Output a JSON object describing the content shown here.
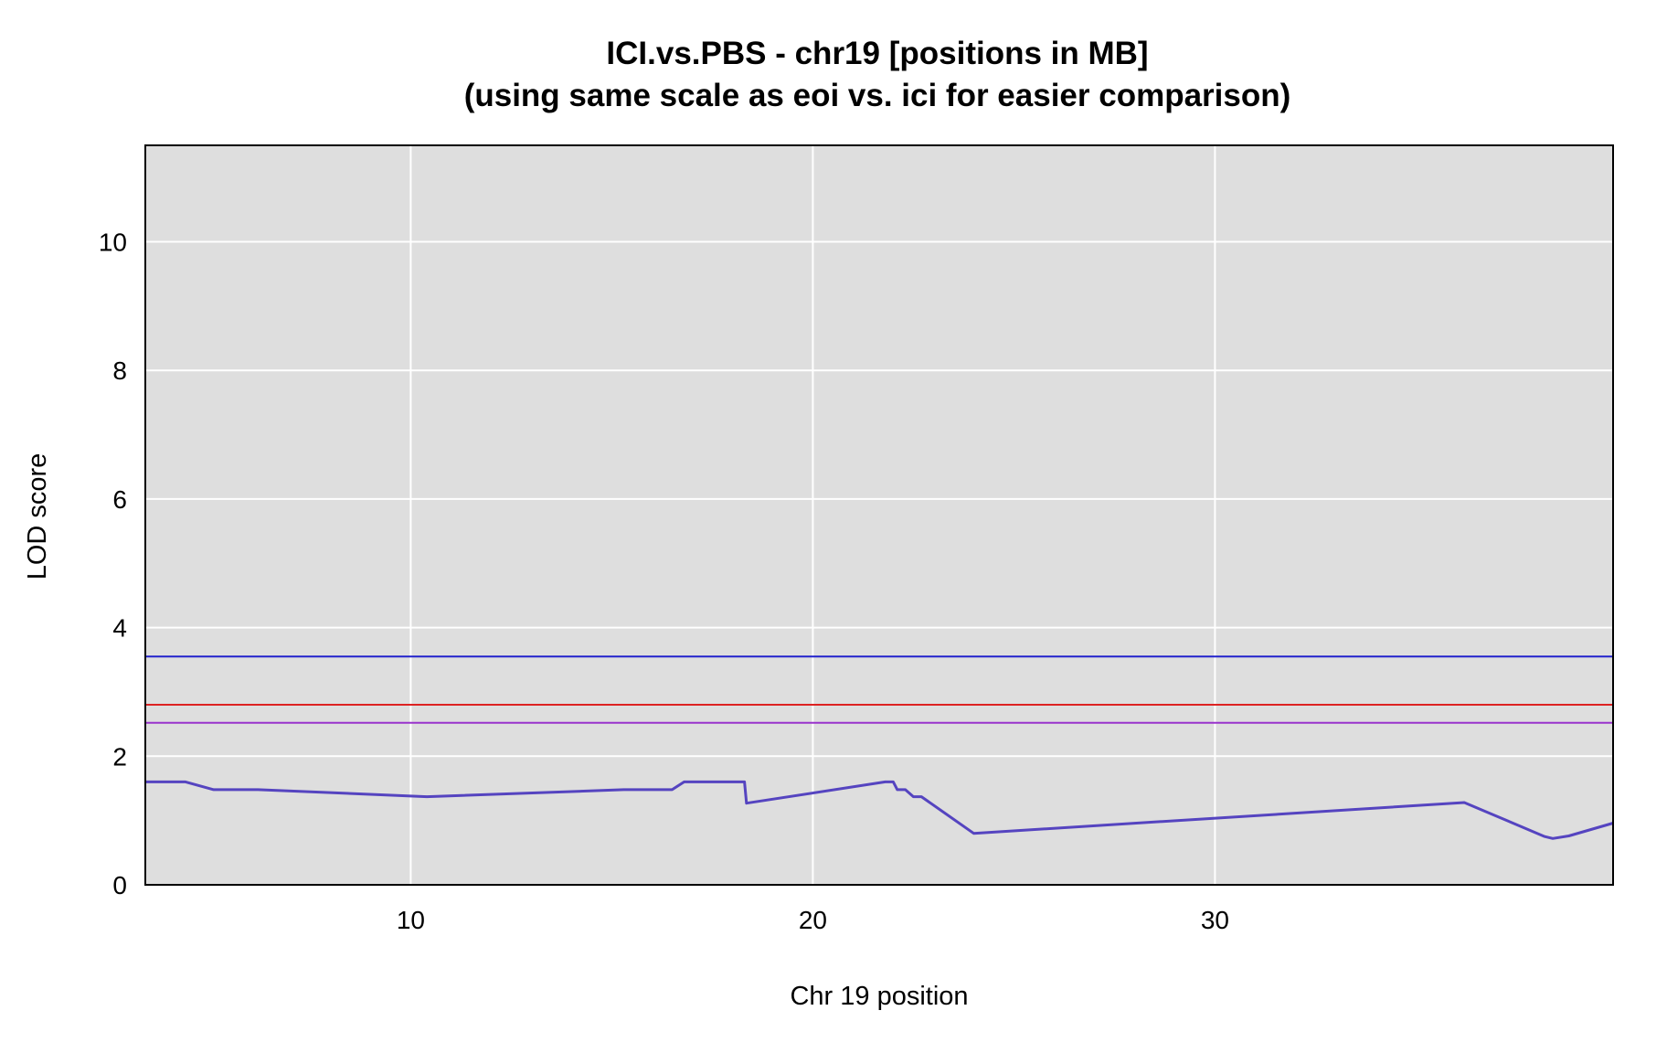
{
  "chart_data": {
    "type": "line",
    "title": "ICI.vs.PBS - chr19 [positions in MB]",
    "subtitle": "(using same scale as eoi vs. ici for easier comparison)",
    "xlabel": "Chr 19 position",
    "ylabel": "LOD score",
    "xlim": [
      3.4,
      39.9
    ],
    "ylim": [
      0,
      11.5
    ],
    "xticks": [
      10,
      20,
      30
    ],
    "yticks": [
      0,
      2,
      4,
      6,
      8,
      10
    ],
    "grid": true,
    "background": "#dedede",
    "thresholds": [
      {
        "value": 3.55,
        "color": "#2222cc"
      },
      {
        "value": 2.8,
        "color": "#dd2222"
      },
      {
        "value": 2.52,
        "color": "#9933cc"
      }
    ],
    "series": [
      {
        "color": "#5544c0",
        "x": [
          3.4,
          4.4,
          5.1,
          6.2,
          10.4,
          15.3,
          16.5,
          16.8,
          18.2,
          18.3,
          18.35,
          21.8,
          22.0,
          22.1,
          22.3,
          22.5,
          22.7,
          24.0,
          36.2,
          38.2,
          38.4,
          38.8,
          39.9
        ],
        "values": [
          1.6,
          1.6,
          1.48,
          1.48,
          1.37,
          1.48,
          1.48,
          1.6,
          1.6,
          1.6,
          1.27,
          1.6,
          1.6,
          1.48,
          1.48,
          1.37,
          1.37,
          0.8,
          1.28,
          0.75,
          0.72,
          0.76,
          0.96
        ]
      }
    ]
  }
}
